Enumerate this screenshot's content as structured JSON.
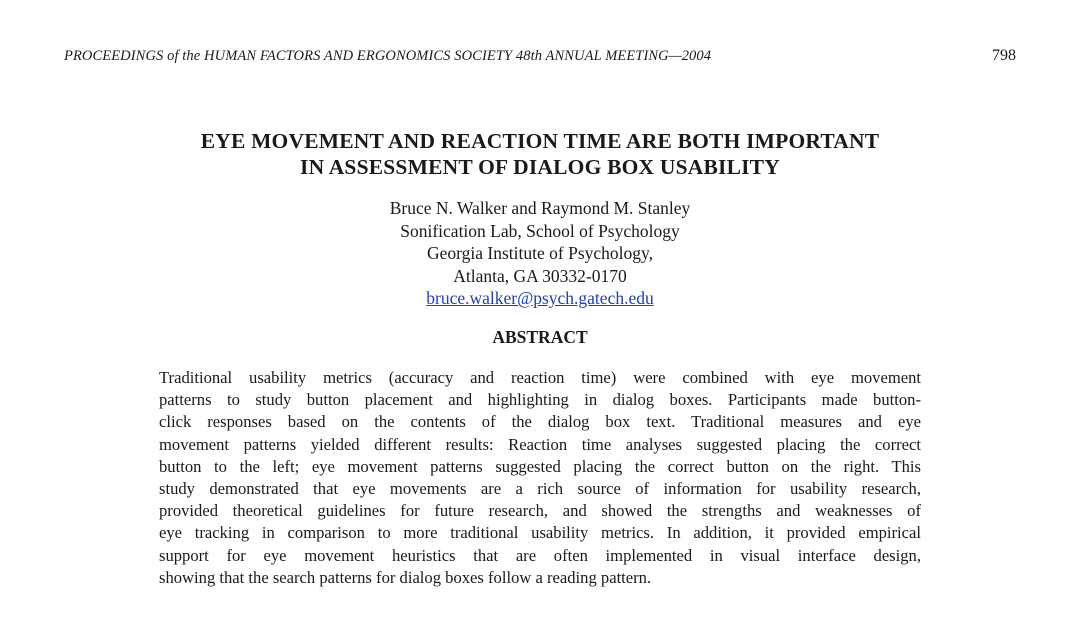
{
  "header": {
    "running_head_prefix": "PROCEEDINGS ",
    "running_head_of": "of the ",
    "running_head_rest": "HUMAN FACTORS AND ERGONOMICS SOCIETY 48th ANNUAL MEETING—2004",
    "page_number": "798"
  },
  "title": {
    "line1": "EYE MOVEMENT AND REACTION TIME ARE BOTH IMPORTANT",
    "line2": "IN ASSESSMENT OF DIALOG BOX USABILITY"
  },
  "authors": {
    "names": "Bruce N. Walker and Raymond M. Stanley",
    "affiliation1": "Sonification Lab, School of Psychology",
    "affiliation2": "Georgia Institute of Psychology,",
    "address": "Atlanta, GA 30332-0170",
    "email": "bruce.walker@psych.gatech.edu"
  },
  "abstract": {
    "heading": "ABSTRACT",
    "lines": [
      "Traditional usability metrics (accuracy and reaction time) were combined with eye movement",
      "patterns to study button placement and highlighting in dialog boxes. Participants made button-",
      "click responses based on the contents of the dialog box text. Traditional measures and eye",
      "movement patterns yielded different results: Reaction time analyses suggested placing the correct",
      "button to the left; eye movement patterns suggested placing the correct button on the right. This",
      "study demonstrated that eye movements are a rich source of information for usability research,",
      "provided theoretical guidelines for future research, and showed the strengths and weaknesses of",
      "eye tracking in comparison to more traditional usability metrics. In addition, it provided empirical",
      "support for eye movement heuristics that are often implemented in visual interface design,",
      "showing that the search patterns for dialog boxes follow a reading pattern."
    ]
  }
}
